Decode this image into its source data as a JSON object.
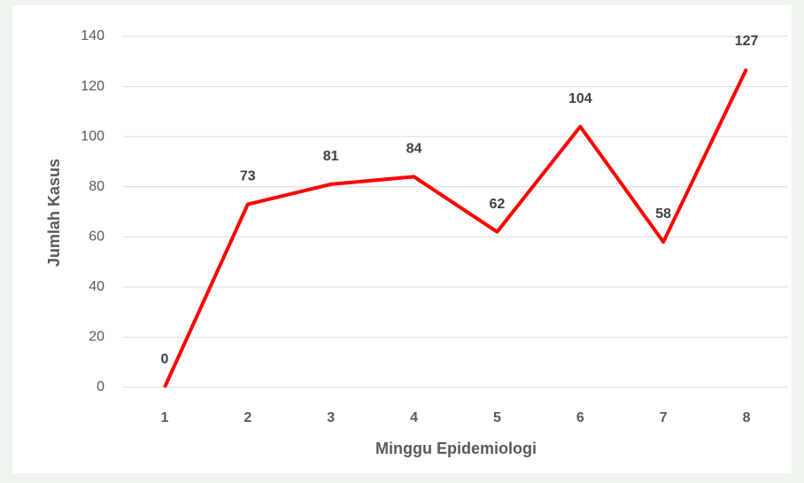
{
  "chart_data": {
    "type": "line",
    "xlabel": "Minggu Epidemiologi",
    "ylabel": "Jumlah Kasus",
    "categories": [
      "1",
      "2",
      "3",
      "4",
      "5",
      "6",
      "7",
      "8"
    ],
    "series": [
      {
        "name": "Jumlah Kasus",
        "color": "#ff0000",
        "values": [
          0,
          73,
          81,
          84,
          62,
          104,
          58,
          127
        ]
      }
    ],
    "ylim": [
      0,
      140
    ],
    "yticks": [
      0,
      20,
      40,
      60,
      80,
      100,
      120,
      140
    ],
    "grid": true,
    "data_labels": true
  }
}
